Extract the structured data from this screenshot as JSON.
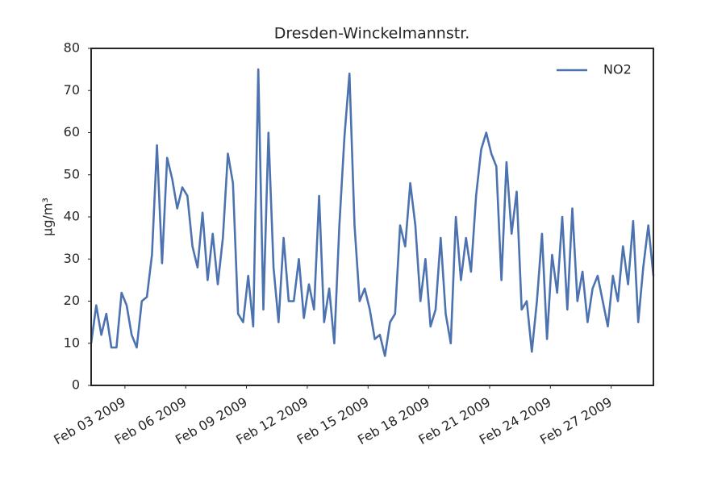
{
  "chart_data": {
    "type": "line",
    "title": "Dresden-Winckelmannstr.",
    "y_label": "μg/m³",
    "x": [
      "2009-02-01T08:00Z",
      "2009-02-01T14:00Z",
      "2009-02-01T20:00Z",
      "2009-02-02T02:00Z",
      "2009-02-02T08:00Z",
      "2009-02-02T14:00Z",
      "2009-02-02T20:00Z",
      "2009-02-03T02:00Z",
      "2009-02-03T08:00Z",
      "2009-02-03T14:00Z",
      "2009-02-03T20:00Z",
      "2009-02-04T02:00Z",
      "2009-02-04T08:00Z",
      "2009-02-04T14:00Z",
      "2009-02-04T20:00Z",
      "2009-02-05T02:00Z",
      "2009-02-05T08:00Z",
      "2009-02-05T14:00Z",
      "2009-02-05T20:00Z",
      "2009-02-06T02:00Z",
      "2009-02-06T08:00Z",
      "2009-02-06T14:00Z",
      "2009-02-06T20:00Z",
      "2009-02-07T02:00Z",
      "2009-02-07T08:00Z",
      "2009-02-07T14:00Z",
      "2009-02-07T20:00Z",
      "2009-02-08T02:00Z",
      "2009-02-08T08:00Z",
      "2009-02-08T14:00Z",
      "2009-02-08T20:00Z",
      "2009-02-09T02:00Z",
      "2009-02-09T08:00Z",
      "2009-02-09T14:00Z",
      "2009-02-09T20:00Z",
      "2009-02-10T02:00Z",
      "2009-02-10T08:00Z",
      "2009-02-10T14:00Z",
      "2009-02-10T20:00Z",
      "2009-02-11T02:00Z",
      "2009-02-11T08:00Z",
      "2009-02-11T14:00Z",
      "2009-02-11T20:00Z",
      "2009-02-12T02:00Z",
      "2009-02-12T08:00Z",
      "2009-02-12T14:00Z",
      "2009-02-12T20:00Z",
      "2009-02-13T02:00Z",
      "2009-02-13T08:00Z",
      "2009-02-13T14:00Z",
      "2009-02-13T20:00Z",
      "2009-02-14T02:00Z",
      "2009-02-14T08:00Z",
      "2009-02-14T14:00Z",
      "2009-02-14T20:00Z",
      "2009-02-15T02:00Z",
      "2009-02-15T08:00Z",
      "2009-02-15T14:00Z",
      "2009-02-15T20:00Z",
      "2009-02-16T02:00Z",
      "2009-02-16T08:00Z",
      "2009-02-16T14:00Z",
      "2009-02-16T20:00Z",
      "2009-02-17T02:00Z",
      "2009-02-17T08:00Z",
      "2009-02-17T14:00Z",
      "2009-02-17T20:00Z",
      "2009-02-18T02:00Z",
      "2009-02-18T08:00Z",
      "2009-02-18T14:00Z",
      "2009-02-18T20:00Z",
      "2009-02-19T02:00Z",
      "2009-02-19T08:00Z",
      "2009-02-19T14:00Z",
      "2009-02-19T20:00Z",
      "2009-02-20T02:00Z",
      "2009-02-20T08:00Z",
      "2009-02-20T14:00Z",
      "2009-02-20T20:00Z",
      "2009-02-21T02:00Z",
      "2009-02-21T08:00Z",
      "2009-02-21T14:00Z",
      "2009-02-21T20:00Z",
      "2009-02-22T02:00Z",
      "2009-02-22T08:00Z",
      "2009-02-22T14:00Z",
      "2009-02-22T20:00Z",
      "2009-02-23T02:00Z",
      "2009-02-23T08:00Z",
      "2009-02-23T14:00Z",
      "2009-02-23T20:00Z",
      "2009-02-24T02:00Z",
      "2009-02-24T08:00Z",
      "2009-02-24T14:00Z",
      "2009-02-24T20:00Z",
      "2009-02-25T02:00Z",
      "2009-02-25T08:00Z",
      "2009-02-25T14:00Z",
      "2009-02-25T20:00Z",
      "2009-02-26T02:00Z",
      "2009-02-26T08:00Z",
      "2009-02-26T14:00Z",
      "2009-02-26T20:00Z",
      "2009-02-27T02:00Z",
      "2009-02-27T08:00Z",
      "2009-02-27T14:00Z",
      "2009-02-27T20:00Z",
      "2009-02-28T02:00Z",
      "2009-02-28T08:00Z",
      "2009-02-28T14:00Z",
      "2009-02-28T20:00Z",
      "2009-03-01T02:00Z"
    ],
    "series": [
      {
        "name": "NO2",
        "color": "#4c72b0",
        "values": [
          10,
          19,
          12,
          17,
          9,
          9,
          22,
          19,
          12,
          9,
          20,
          21,
          31,
          57,
          29,
          54,
          49,
          42,
          47,
          45,
          33,
          28,
          41,
          25,
          36,
          24,
          35,
          55,
          48,
          17,
          15,
          26,
          14,
          75,
          18,
          60,
          28,
          15,
          35,
          20,
          20,
          30,
          16,
          24,
          18,
          45,
          15,
          23,
          10,
          38,
          59,
          74,
          38,
          20,
          23,
          18,
          11,
          12,
          7,
          15,
          17,
          38,
          33,
          48,
          38,
          20,
          30,
          14,
          18,
          35,
          17,
          10,
          40,
          25,
          35,
          27,
          45,
          56,
          60,
          55,
          52,
          25,
          53,
          36,
          46,
          18,
          20,
          8,
          20,
          36,
          11,
          31,
          22,
          40,
          18,
          42,
          20,
          27,
          15,
          23,
          26,
          20,
          14,
          26,
          20,
          33,
          24,
          39,
          15,
          28,
          38,
          26
        ]
      }
    ],
    "xlim": [
      "2009-02-01T08:00Z",
      "2009-03-01T02:00Z"
    ],
    "xticks": [
      {
        "value": "2009-02-03T00:00Z",
        "label": "Feb 03 2009"
      },
      {
        "value": "2009-02-06T00:00Z",
        "label": "Feb 06 2009"
      },
      {
        "value": "2009-02-09T00:00Z",
        "label": "Feb 09 2009"
      },
      {
        "value": "2009-02-12T00:00Z",
        "label": "Feb 12 2009"
      },
      {
        "value": "2009-02-15T00:00Z",
        "label": "Feb 15 2009"
      },
      {
        "value": "2009-02-18T00:00Z",
        "label": "Feb 18 2009"
      },
      {
        "value": "2009-02-21T00:00Z",
        "label": "Feb 21 2009"
      },
      {
        "value": "2009-02-24T00:00Z",
        "label": "Feb 24 2009"
      },
      {
        "value": "2009-02-27T00:00Z",
        "label": "Feb 27 2009"
      }
    ],
    "ylim": [
      0,
      80
    ],
    "yticks": [
      0,
      10,
      20,
      30,
      40,
      50,
      60,
      70,
      80
    ],
    "grid": false,
    "legend": "upper right"
  }
}
